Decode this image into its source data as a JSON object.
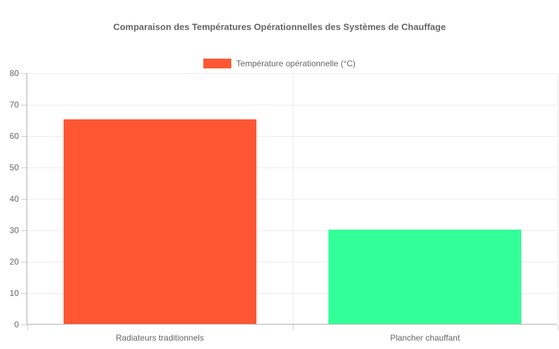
{
  "chart_data": {
    "type": "bar",
    "title": "Comparaison des Températures Opérationnelles des Systèmes de Chauffage",
    "categories": [
      "Radiateurs traditionnels",
      "Plancher chauffant"
    ],
    "series": [
      {
        "name": "Température opérationnelle (°C)",
        "values": [
          65,
          30
        ],
        "colors": [
          "#FF5733",
          "#33FF99"
        ]
      }
    ],
    "xlabel": "",
    "ylabel": "",
    "ylim": [
      0,
      80
    ],
    "ytick_step": 10,
    "yticks": [
      0,
      10,
      20,
      30,
      40,
      50,
      60,
      70,
      80
    ],
    "grid": true,
    "legend_position": "top",
    "legend_swatch_color": "#FF5733",
    "colors": {
      "gridline": "#ececec",
      "axis": "#b0b0b0",
      "tick": "#cfcfcf",
      "text": "#666666",
      "background": "#ffffff"
    }
  }
}
